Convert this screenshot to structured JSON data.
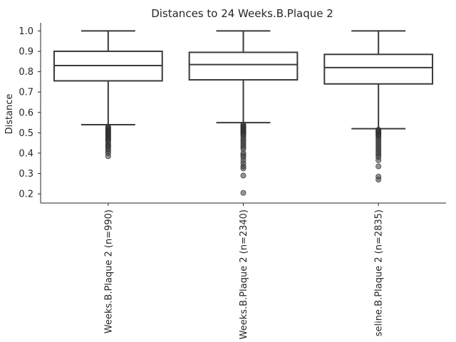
{
  "chart_data": {
    "type": "box",
    "title": "Distances to 24 Weeks.B.Plaque 2",
    "xlabel": "",
    "ylabel": "Distance",
    "ylim": [
      0.155,
      1.04
    ],
    "yticks": [
      0.2,
      0.3,
      0.4,
      0.5,
      0.6,
      0.7,
      0.8,
      0.9,
      1.0
    ],
    "ytick_labels": [
      "0.2",
      "0.3",
      "0.4",
      "0.5",
      "0.6",
      "0.7",
      "0.8",
      "0.9",
      "1.0"
    ],
    "categories": [
      "Weeks.B.Plaque 2 (n=990)",
      "Weeks.B.Plaque 2 (n=2340)",
      "seline.B.Plaque 2 (n=2835)"
    ],
    "boxes": [
      {
        "whisker_low": 0.54,
        "q1": 0.755,
        "median": 0.83,
        "q3": 0.9,
        "whisker_high": 1.0,
        "fliers": [
          0.53,
          0.525,
          0.52,
          0.515,
          0.51,
          0.505,
          0.5,
          0.495,
          0.49,
          0.485,
          0.48,
          0.475,
          0.47,
          0.465,
          0.46,
          0.45,
          0.44,
          0.435,
          0.43,
          0.42,
          0.41,
          0.4,
          0.385
        ]
      },
      {
        "whisker_low": 0.55,
        "q1": 0.76,
        "median": 0.835,
        "q3": 0.895,
        "whisker_high": 1.0,
        "fliers": [
          0.54,
          0.535,
          0.53,
          0.525,
          0.52,
          0.515,
          0.51,
          0.505,
          0.5,
          0.495,
          0.49,
          0.48,
          0.47,
          0.46,
          0.45,
          0.44,
          0.43,
          0.42,
          0.4,
          0.39,
          0.38,
          0.365,
          0.35,
          0.335,
          0.325,
          0.29,
          0.205
        ]
      },
      {
        "whisker_low": 0.52,
        "q1": 0.74,
        "median": 0.82,
        "q3": 0.885,
        "whisker_high": 1.0,
        "fliers": [
          0.515,
          0.51,
          0.505,
          0.5,
          0.495,
          0.49,
          0.485,
          0.48,
          0.47,
          0.46,
          0.45,
          0.44,
          0.43,
          0.42,
          0.41,
          0.4,
          0.39,
          0.38,
          0.365,
          0.335,
          0.285,
          0.27
        ]
      }
    ],
    "grid": false,
    "legend": "none"
  }
}
